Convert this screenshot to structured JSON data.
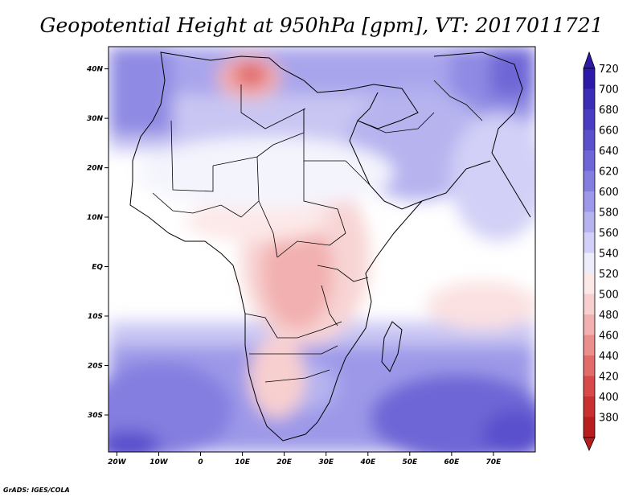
{
  "title": "Geopotential Height at 950hPa [gpm], VT: 2017011721",
  "credit": "GrADS: IGES/COLA",
  "map": {
    "lon_range": [
      -22,
      80
    ],
    "lat_range": [
      -37,
      45
    ],
    "lon_ticks": [
      {
        "lon": -20,
        "label": "20W"
      },
      {
        "lon": -10,
        "label": "10W"
      },
      {
        "lon": 0,
        "label": "0"
      },
      {
        "lon": 10,
        "label": "10E"
      },
      {
        "lon": 20,
        "label": "20E"
      },
      {
        "lon": 30,
        "label": "30E"
      },
      {
        "lon": 40,
        "label": "40E"
      },
      {
        "lon": 50,
        "label": "50E"
      },
      {
        "lon": 60,
        "label": "60E"
      },
      {
        "lon": 70,
        "label": "70E"
      }
    ],
    "lat_ticks": [
      {
        "lat": 40,
        "label": "40N"
      },
      {
        "lat": 30,
        "label": "30N"
      },
      {
        "lat": 20,
        "label": "20N"
      },
      {
        "lat": 10,
        "label": "10N"
      },
      {
        "lat": 0,
        "label": "EQ"
      },
      {
        "lat": -10,
        "label": "10S"
      },
      {
        "lat": -20,
        "label": "20S"
      },
      {
        "lat": -30,
        "label": "30S"
      }
    ],
    "features": {
      "heat_low_maximum_region": "North Africa (Algeria/Tunisia), approx. 400–440 gpm",
      "high_pressure_regions": "Southern Indian Ocean, South Atlantic and Middle East, up to approx. 680 gpm"
    }
  },
  "colorbar": {
    "units": "gpm",
    "levels": [
      {
        "label": "720",
        "color": "#2e1aa8"
      },
      {
        "label": "700",
        "color": "#3b2db6"
      },
      {
        "label": "680",
        "color": "#4a3dc2"
      },
      {
        "label": "660",
        "color": "#5a50cc"
      },
      {
        "label": "640",
        "color": "#6e66d6"
      },
      {
        "label": "620",
        "color": "#847ee0"
      },
      {
        "label": "600",
        "color": "#9d99e8"
      },
      {
        "label": "580",
        "color": "#b6b3ef"
      },
      {
        "label": "560",
        "color": "#d2d0f6"
      },
      {
        "label": "540",
        "color": "#ececfb"
      },
      {
        "label": "520",
        "color": "#fde8e8"
      },
      {
        "label": "500",
        "color": "#f8cfcf"
      },
      {
        "label": "480",
        "color": "#f2b0b0"
      },
      {
        "label": "460",
        "color": "#ea8e8e"
      },
      {
        "label": "440",
        "color": "#e26b6b"
      },
      {
        "label": "420",
        "color": "#d84a4a"
      },
      {
        "label": "400",
        "color": "#c93030"
      },
      {
        "label": "380",
        "color": "#b81e1e"
      }
    ]
  }
}
